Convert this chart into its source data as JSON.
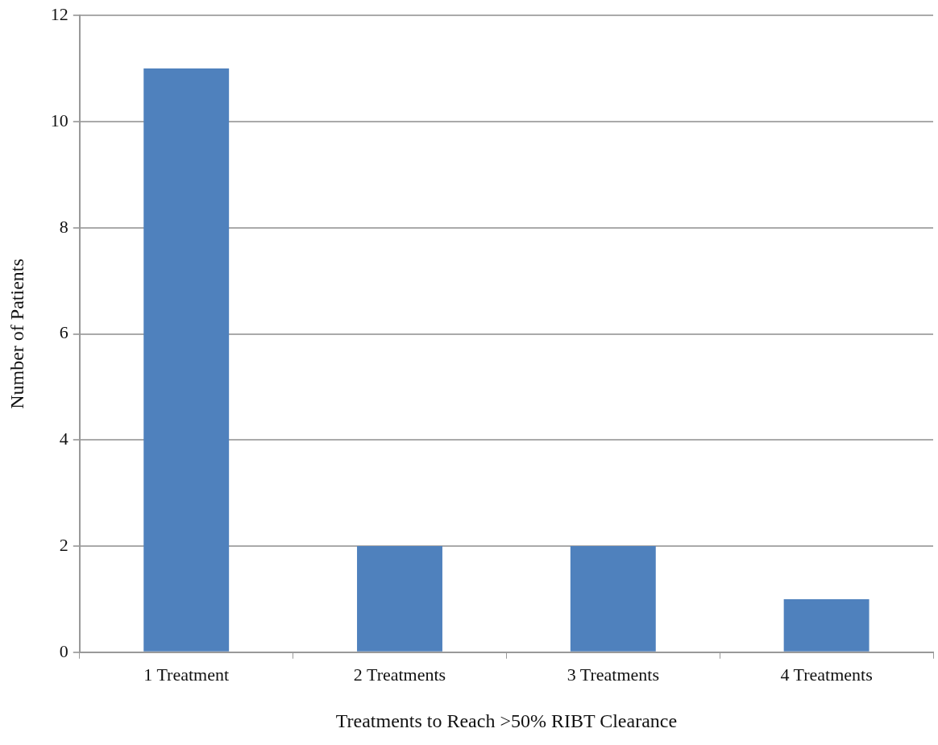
{
  "chart_data": {
    "type": "bar",
    "xlabel": "Treatments to Reach >50% RIBT Clearance",
    "ylabel": "Number of Patients",
    "categories": [
      "1 Treatment",
      "2 Treatments",
      "3 Treatments",
      "4 Treatments"
    ],
    "values": [
      11,
      2,
      2,
      1
    ],
    "color": "#4f81bd",
    "ylim": [
      0,
      12
    ],
    "yticks": [
      0,
      2,
      4,
      6,
      8,
      10,
      12
    ],
    "grid": "y",
    "legend": false
  }
}
